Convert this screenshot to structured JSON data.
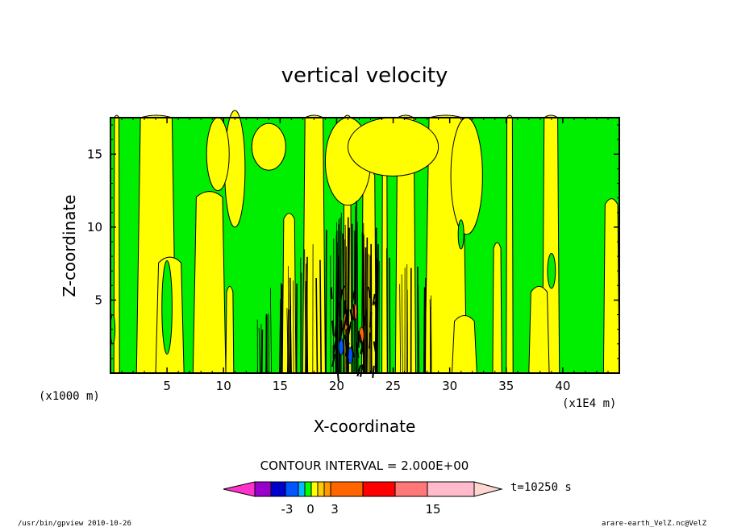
{
  "chart_data": {
    "type": "heatmap",
    "title": "vertical velocity",
    "xlabel": "X-coordinate",
    "ylabel": "Z-coordinate",
    "x_units": "(x1E4 m)",
    "y_units": "(x1000 m)",
    "xlim": [
      0,
      45
    ],
    "ylim": [
      0,
      17.5
    ],
    "x_ticks": [
      "5",
      "10",
      "15",
      "20",
      "25",
      "30",
      "35",
      "40"
    ],
    "y_ticks": [
      "5",
      "10",
      "15"
    ],
    "contour_interval_label": "CONTOUR INTERVAL = 2.000E+00",
    "time_label": "t=10250 s",
    "colorbar_tick_labels": [
      "-3",
      "0",
      "3",
      "15"
    ],
    "colorbar_colors": [
      "#9900cc",
      "#0000cc",
      "#0055ff",
      "#00bbff",
      "#00ff00",
      "#ffff00",
      "#ffcc00",
      "#ff9900",
      "#ff6600",
      "#ff0000",
      "#ff7777",
      "#ffbbcc"
    ],
    "field_colors": {
      "positive": "#ffff00",
      "negative": "#00ee00",
      "strong_negative": "#0055ff",
      "strong_positive": "#ff6600"
    }
  },
  "footer": {
    "left": "/usr/bin/gpview   2010-10-26",
    "right": "arare-earth_VelZ.nc@VelZ"
  }
}
